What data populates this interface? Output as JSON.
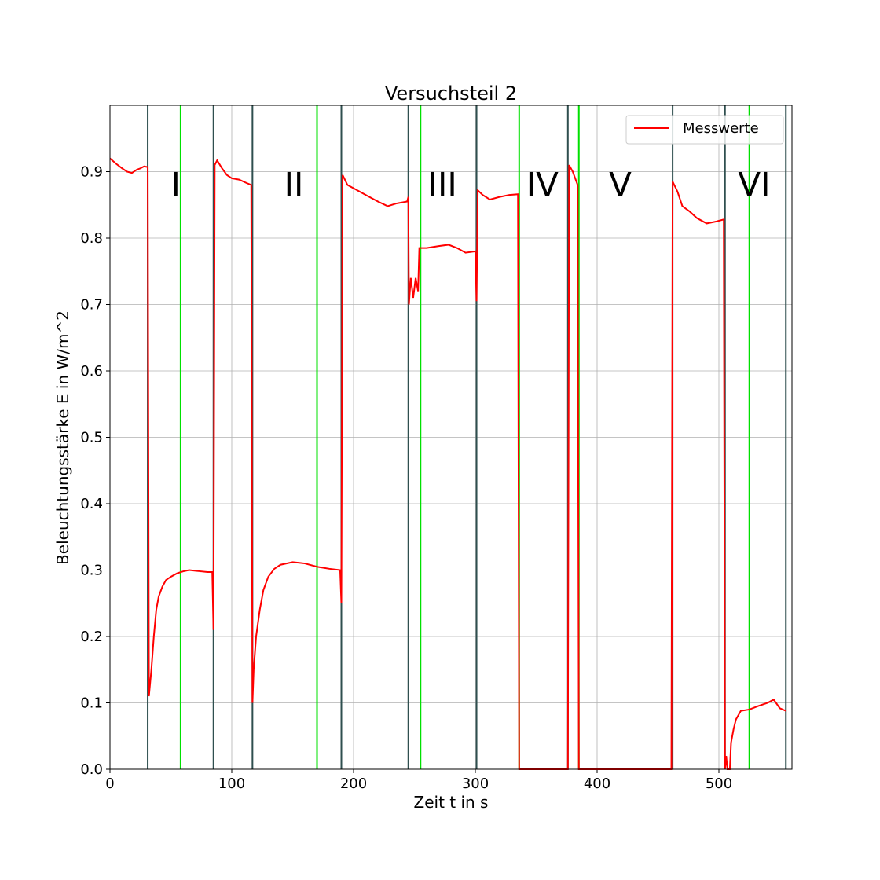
{
  "chart_data": {
    "type": "line",
    "title": "Versuchsteil 2",
    "xlabel": "Zeit t in s",
    "ylabel": "Beleuchtungsstärke E in W/m^2",
    "xlim": [
      0,
      560
    ],
    "ylim": [
      0,
      1.0
    ],
    "xticks": [
      0,
      100,
      200,
      300,
      400,
      500
    ],
    "yticks": [
      {
        "value": 0,
        "label": "0.0"
      },
      0.1,
      0.2,
      0.3,
      0.4,
      0.5,
      0.6,
      0.7,
      0.8,
      0.9
    ],
    "grid": true,
    "legend": "upper right",
    "x": [
      0,
      5,
      10,
      14,
      18,
      22,
      25,
      28,
      31,
      32,
      34,
      36,
      38,
      40,
      43,
      46,
      50,
      55,
      60,
      65,
      70,
      75,
      80,
      84,
      85,
      86,
      88,
      92,
      96,
      100,
      106,
      112,
      116,
      117,
      118,
      120,
      123,
      126,
      130,
      135,
      140,
      150,
      160,
      170,
      180,
      189,
      190,
      191,
      195,
      200,
      210,
      220,
      228,
      235,
      244,
      245,
      245.5,
      247,
      249,
      251,
      253,
      254,
      260,
      270,
      278,
      285,
      292,
      300,
      301,
      302,
      306,
      312,
      320,
      328,
      335,
      336,
      350,
      376,
      377,
      380,
      382,
      384,
      385,
      420,
      461,
      462,
      466,
      470,
      476,
      482,
      490,
      498,
      504,
      505,
      506,
      507,
      509,
      510,
      512,
      514,
      518,
      525,
      532,
      540,
      545,
      550,
      555
    ],
    "series": [
      {
        "name": "Messwerte",
        "color": "#ff0000",
        "values": [
          0.92,
          0.912,
          0.905,
          0.9,
          0.898,
          0.903,
          0.905,
          0.908,
          0.907,
          0.11,
          0.15,
          0.2,
          0.24,
          0.26,
          0.275,
          0.285,
          0.29,
          0.295,
          0.298,
          0.3,
          0.299,
          0.298,
          0.297,
          0.297,
          0.21,
          0.91,
          0.917,
          0.905,
          0.895,
          0.89,
          0.888,
          0.883,
          0.88,
          0.1,
          0.15,
          0.2,
          0.24,
          0.27,
          0.29,
          0.302,
          0.308,
          0.312,
          0.31,
          0.305,
          0.302,
          0.3,
          0.25,
          0.895,
          0.88,
          0.875,
          0.865,
          0.855,
          0.848,
          0.852,
          0.855,
          0.862,
          0.7,
          0.74,
          0.71,
          0.74,
          0.72,
          0.785,
          0.785,
          0.788,
          0.79,
          0.785,
          0.778,
          0.78,
          0.705,
          0.872,
          0.865,
          0.858,
          0.862,
          0.865,
          0.866,
          0.0,
          0.0,
          0.0,
          0.91,
          0.9,
          0.89,
          0.88,
          0.0,
          0.0,
          0.0,
          0.885,
          0.87,
          0.848,
          0.84,
          0.83,
          0.822,
          0.825,
          0.828,
          0.0,
          0.02,
          0.0,
          0.0,
          0.04,
          0.06,
          0.075,
          0.088,
          0.09,
          0.095,
          0.1,
          0.105,
          0.092,
          0.088
        ]
      }
    ],
    "vlines_dark": {
      "color": "#2f4f4f",
      "x": [
        31,
        85,
        117,
        190,
        245,
        301,
        376,
        462,
        505,
        555
      ]
    },
    "vlines_green": {
      "color": "#00e000",
      "x": [
        58,
        170,
        255,
        336,
        385,
        525
      ]
    },
    "annotations": [
      {
        "text": "I",
        "x": 54,
        "y": 0.88
      },
      {
        "text": "II",
        "x": 151,
        "y": 0.88
      },
      {
        "text": "III",
        "x": 273,
        "y": 0.88
      },
      {
        "text": "IV",
        "x": 355,
        "y": 0.88
      },
      {
        "text": "V",
        "x": 419,
        "y": 0.88
      },
      {
        "text": "VI",
        "x": 529,
        "y": 0.88
      }
    ]
  }
}
